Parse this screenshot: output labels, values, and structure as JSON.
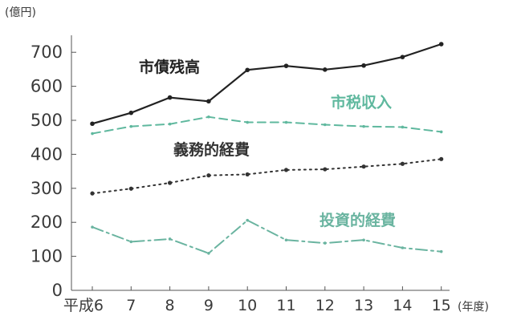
{
  "chart_data": {
    "type": "line",
    "y_unit": "(億円)",
    "x_unit": "(年度)",
    "categories": [
      "平成6",
      "7",
      "8",
      "9",
      "10",
      "11",
      "12",
      "13",
      "14",
      "15"
    ],
    "ylim": [
      0,
      750
    ],
    "yticks": [
      0,
      100,
      200,
      300,
      400,
      500,
      600,
      700
    ],
    "grid": false,
    "series": [
      {
        "name": "市債残高",
        "color": "#222222",
        "style": "solid",
        "values": [
          490,
          522,
          567,
          556,
          648,
          660,
          649,
          661,
          686,
          724
        ]
      },
      {
        "name": "市税収入",
        "color": "#5fb89e",
        "style": "dashed",
        "values": [
          461,
          482,
          489,
          510,
          494,
          494,
          487,
          482,
          480,
          466
        ]
      },
      {
        "name": "義務的経費",
        "color": "#333333",
        "style": "dotted",
        "values": [
          285,
          299,
          316,
          338,
          341,
          354,
          356,
          364,
          372,
          386
        ]
      },
      {
        "name": "投資的経費",
        "color": "#6ab4a0",
        "style": "dashdot",
        "values": [
          186,
          143,
          151,
          109,
          206,
          148,
          139,
          148,
          125,
          114
        ]
      }
    ]
  }
}
